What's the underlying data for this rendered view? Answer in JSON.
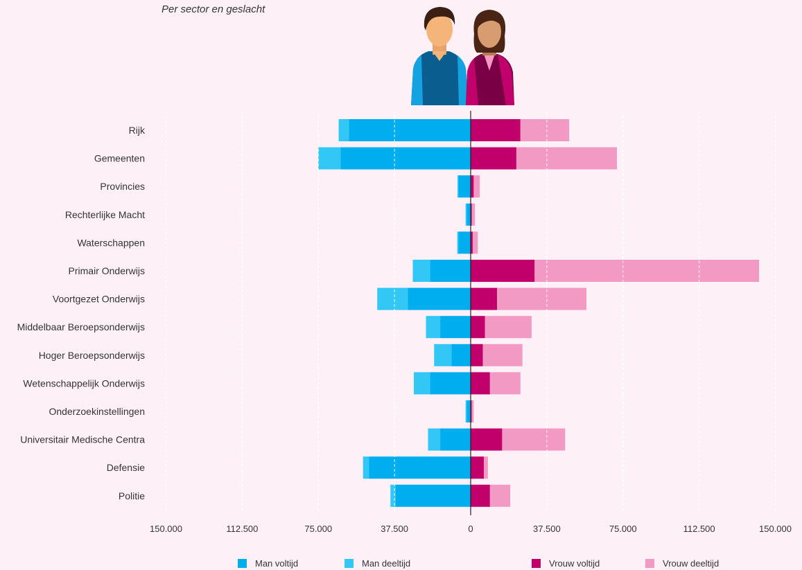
{
  "subtitle": "Per sector en geslacht",
  "colors": {
    "man_voltijd": "#00aeef",
    "man_deeltijd": "#33c7f5",
    "vrouw_voltijd": "#c2006b",
    "vrouw_deeltijd": "#f39ac4",
    "background": "#fdf0f6"
  },
  "legend": [
    {
      "label": "Man voltijd",
      "color": "#00aeef"
    },
    {
      "label": "Man deeltijd",
      "color": "#33c7f5"
    },
    {
      "label": "Vrouw voltijd",
      "color": "#c2006b"
    },
    {
      "label": "Vrouw deeltijd",
      "color": "#f39ac4"
    }
  ],
  "illustration": {
    "icons": [
      "man-figure-icon",
      "woman-figure-icon"
    ]
  },
  "chart_data": {
    "type": "bar",
    "orientation": "horizontal-diverging",
    "categories": [
      "Rijk",
      "Gemeenten",
      "Provincies",
      "Rechterlijke Macht",
      "Waterschappen",
      "Primair Onderwijs",
      "Voortgezet Onderwijs",
      "Middelbaar Beroepsonderwijs",
      "Hoger Beroepsonderwijs",
      "Wetenschappelijk Onderwijs",
      "Onderzoekinstellingen",
      "Universitair Medische Centra",
      "Defensie",
      "Politie"
    ],
    "series": [
      {
        "name": "Man voltijd",
        "side": "left",
        "values": [
          60000,
          64000,
          6000,
          2000,
          6000,
          20000,
          31000,
          15000,
          9500,
          20000,
          2000,
          15000,
          50000,
          37000
        ]
      },
      {
        "name": "Man deeltijd",
        "side": "left",
        "values": [
          5000,
          11000,
          500,
          500,
          600,
          8500,
          15000,
          7000,
          8500,
          8000,
          500,
          6000,
          3000,
          2500
        ]
      },
      {
        "name": "Vrouw voltijd",
        "side": "right",
        "values": [
          24500,
          22500,
          1500,
          600,
          1000,
          31500,
          13000,
          7000,
          6000,
          9500,
          500,
          15500,
          6500,
          9500
        ]
      },
      {
        "name": "Vrouw deeltijd",
        "side": "right",
        "values": [
          24000,
          49500,
          3000,
          1500,
          2500,
          110500,
          44000,
          23000,
          19500,
          15000,
          1000,
          31000,
          2000,
          10000
        ]
      }
    ],
    "x_ticks": [
      "150.000",
      "112.500",
      "75.000",
      "37.500",
      "0",
      "37.500",
      "75.000",
      "112.500",
      "150.000"
    ],
    "xlim": [
      -150000,
      150000
    ],
    "grid": true,
    "legend_position": "bottom"
  }
}
